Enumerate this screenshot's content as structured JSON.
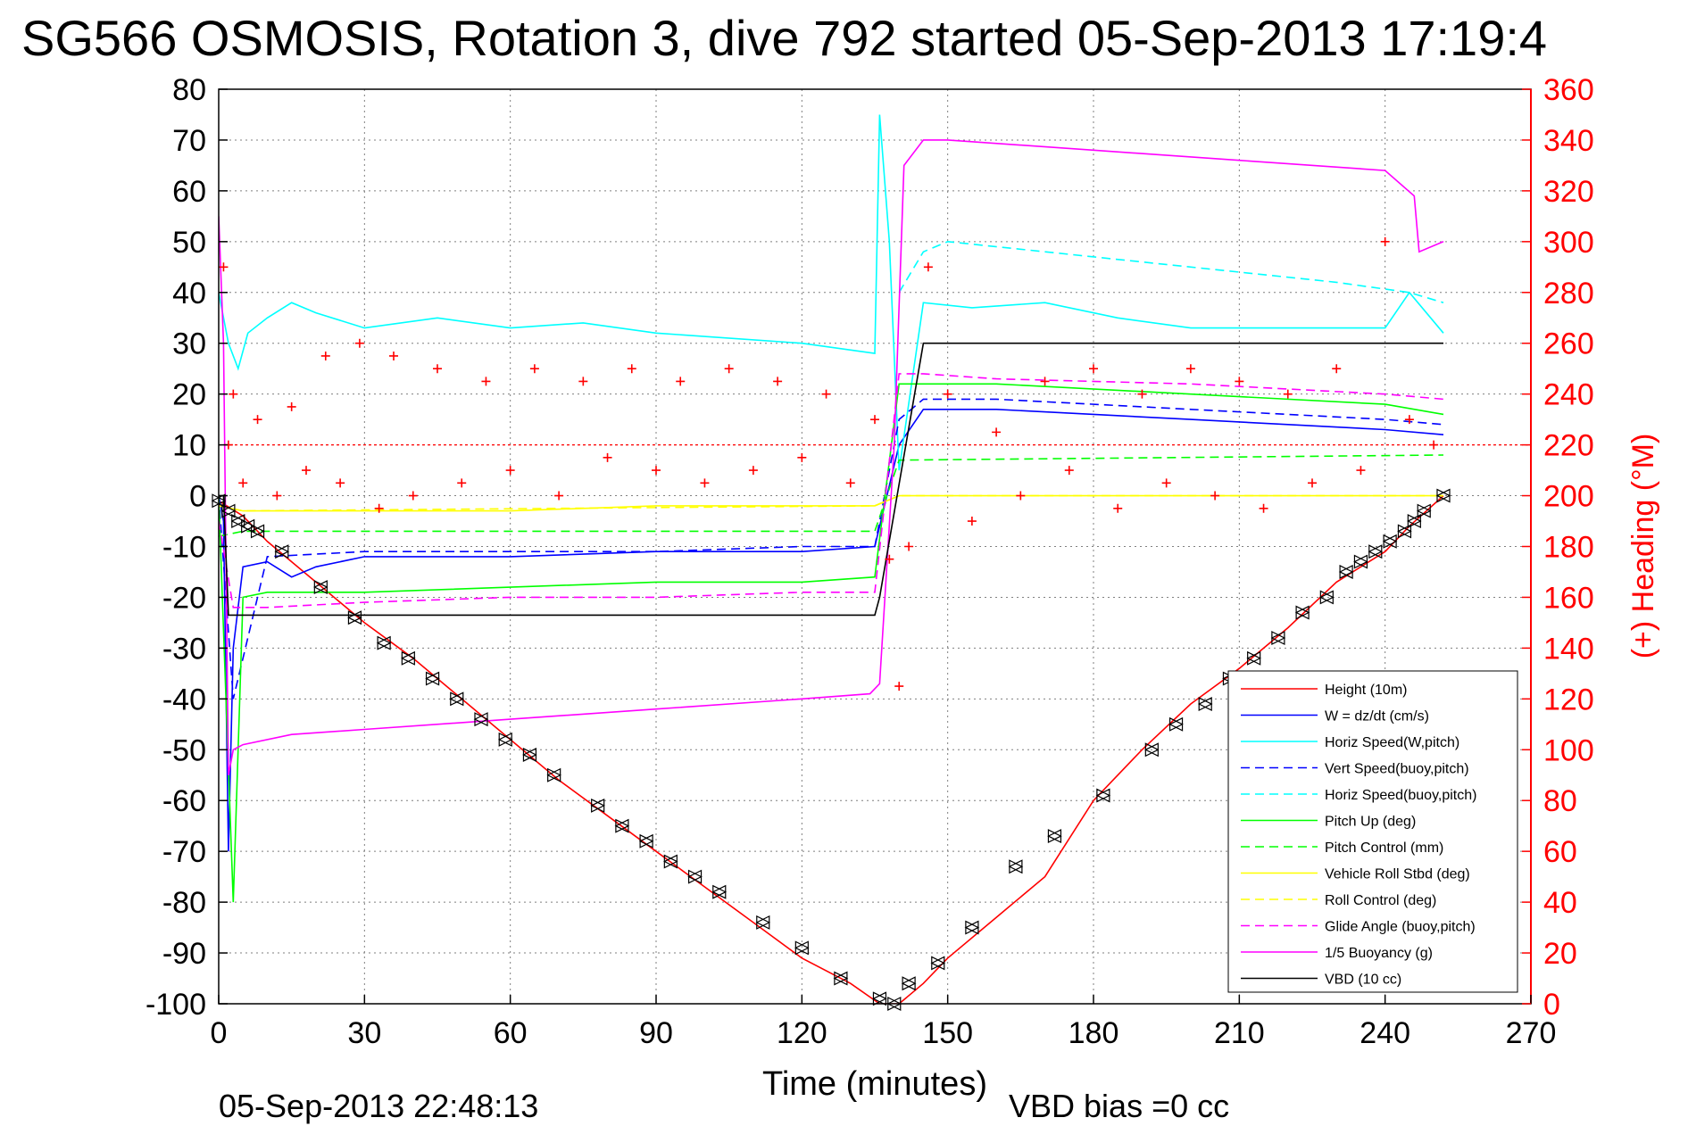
{
  "title": "SG566 OSMOSIS, Rotation 3, dive 792 started 05-Sep-2013 17:19:4",
  "footer_left": "05-Sep-2013 22:48:13",
  "footer_right": "VBD bias =0 cc",
  "colors": {
    "right_axis": "#ff0000",
    "grid": "#7f7f7f"
  },
  "chart_data": {
    "type": "line",
    "xlabel": "Time (minutes)",
    "ylabel": "",
    "y2label": "(+) Heading (°M)",
    "xlim": [
      0,
      270
    ],
    "ylim": [
      -100,
      80
    ],
    "y2lim": [
      0,
      360
    ],
    "xticks": [
      0,
      30,
      60,
      90,
      120,
      150,
      180,
      210,
      240,
      270
    ],
    "yticks": [
      -100,
      -90,
      -80,
      -70,
      -60,
      -50,
      -40,
      -30,
      -20,
      -10,
      0,
      10,
      20,
      30,
      40,
      50,
      60,
      70,
      80
    ],
    "y2ticks": [
      0,
      20,
      40,
      60,
      80,
      100,
      120,
      140,
      160,
      180,
      200,
      220,
      240,
      260,
      280,
      300,
      320,
      340,
      360
    ],
    "grid": true,
    "legend_position": "bottom-right",
    "series": [
      {
        "name": "Height (10m)",
        "color": "#ff0000",
        "style": "solid",
        "x": [
          0,
          5,
          10,
          20,
          30,
          40,
          50,
          60,
          70,
          80,
          90,
          100,
          110,
          120,
          130,
          136,
          140,
          145,
          150,
          160,
          170,
          180,
          190,
          200,
          210,
          220,
          230,
          240,
          245,
          252
        ],
        "y": [
          -1,
          -4,
          -9,
          -17,
          -25,
          -32,
          -40,
          -48,
          -56,
          -63,
          -70,
          -77,
          -84,
          -91,
          -96,
          -100,
          -100,
          -96,
          -91,
          -83,
          -75,
          -60,
          -50,
          -41,
          -34,
          -26,
          -17,
          -11,
          -6,
          0
        ]
      },
      {
        "name": "W = dz/dt (cm/s)",
        "color": "#0000ff",
        "style": "solid",
        "x": [
          0,
          1,
          2,
          3,
          5,
          10,
          15,
          20,
          30,
          60,
          90,
          120,
          135,
          140,
          145,
          160,
          200,
          240,
          252
        ],
        "y": [
          0,
          -5,
          -70,
          -30,
          -14,
          -13,
          -16,
          -14,
          -12,
          -12,
          -11,
          -11,
          -10,
          10,
          17,
          17,
          15,
          13,
          12
        ]
      },
      {
        "name": "Horiz Speed(W,pitch)",
        "color": "#00ffff",
        "style": "solid",
        "x": [
          0,
          2,
          4,
          6,
          10,
          15,
          20,
          30,
          45,
          60,
          75,
          90,
          120,
          135,
          136,
          138,
          140,
          145,
          155,
          170,
          185,
          200,
          220,
          240,
          245,
          252
        ],
        "y": [
          40,
          30,
          25,
          32,
          35,
          38,
          36,
          33,
          35,
          33,
          34,
          32,
          30,
          28,
          75,
          50,
          5,
          38,
          37,
          38,
          35,
          33,
          33,
          33,
          40,
          32
        ]
      },
      {
        "name": "Vert Speed(buoy,pitch)",
        "color": "#0000ff",
        "style": "dashed",
        "x": [
          0,
          3,
          10,
          30,
          60,
          90,
          120,
          135,
          140,
          145,
          160,
          200,
          240,
          252
        ],
        "y": [
          0,
          -40,
          -12,
          -11,
          -11,
          -11,
          -10,
          -10,
          15,
          19,
          19,
          17,
          15,
          14
        ]
      },
      {
        "name": "Horiz Speed(buoy,pitch)",
        "color": "#00ffff",
        "style": "dashed",
        "x": [
          140,
          145,
          150,
          170,
          190,
          210,
          230,
          245,
          252
        ],
        "y": [
          40,
          48,
          50,
          48,
          46,
          44,
          42,
          40,
          38
        ]
      },
      {
        "name": "Pitch Up (deg)",
        "color": "#00ff00",
        "style": "solid",
        "x": [
          0,
          3,
          5,
          10,
          30,
          60,
          90,
          120,
          135,
          140,
          145,
          160,
          200,
          240,
          252
        ],
        "y": [
          0,
          -80,
          -20,
          -19,
          -19,
          -18,
          -17,
          -17,
          -16,
          22,
          22,
          22,
          20,
          18,
          16
        ]
      },
      {
        "name": "Pitch Control (mm)",
        "color": "#00ff00",
        "style": "dashed",
        "x": [
          0,
          5,
          135,
          140,
          252
        ],
        "y": [
          -8,
          -7,
          -7,
          7,
          8
        ]
      },
      {
        "name": "Vehicle Roll Stbd (deg)",
        "color": "#ffff00",
        "style": "solid",
        "x": [
          0,
          5,
          30,
          60,
          90,
          120,
          135,
          140,
          160,
          200,
          240,
          252
        ],
        "y": [
          -2,
          -3,
          -3,
          -3,
          -2,
          -2,
          -2,
          0,
          0,
          0,
          0,
          0
        ]
      },
      {
        "name": "Roll Control (deg)",
        "color": "#ffff00",
        "style": "dashed",
        "x": [
          0,
          5,
          135,
          140,
          252
        ],
        "y": [
          -2,
          -3,
          -2,
          0,
          0
        ]
      },
      {
        "name": "Glide Angle (buoy,pitch)",
        "color": "#ff00ff",
        "style": "dashed",
        "x": [
          0,
          3,
          10,
          30,
          60,
          90,
          120,
          135,
          140,
          145,
          160,
          200,
          240,
          252
        ],
        "y": [
          -5,
          -22,
          -22,
          -21,
          -20,
          -20,
          -19,
          -19,
          24,
          24,
          23,
          22,
          20,
          19
        ]
      },
      {
        "name": "1/5 Buoyancy (g)",
        "color": "#ff00ff",
        "style": "solid",
        "x": [
          0,
          1,
          2,
          3,
          5,
          15,
          30,
          60,
          90,
          120,
          134,
          136,
          139,
          141,
          145,
          150,
          180,
          210,
          240,
          246,
          247,
          252
        ],
        "y": [
          55,
          30,
          -55,
          -50,
          -49,
          -47,
          -46,
          -44,
          -42,
          -40,
          -39,
          -37,
          10,
          65,
          70,
          70,
          68,
          66,
          64,
          59,
          48,
          50
        ]
      },
      {
        "name": "VBD (10 cc)",
        "color": "#000000",
        "style": "solid",
        "x": [
          0,
          1,
          2,
          135,
          136,
          145,
          146,
          252
        ],
        "y": [
          0,
          0,
          -23.5,
          -23.5,
          -20,
          30,
          30,
          30
        ]
      }
    ],
    "heading": {
      "name": "(+) Heading (°M)",
      "color": "#ff0000",
      "marker": "+",
      "x": [
        1,
        2,
        3,
        5,
        8,
        12,
        15,
        18,
        22,
        25,
        29,
        33,
        36,
        40,
        45,
        50,
        55,
        60,
        65,
        70,
        75,
        80,
        85,
        90,
        95,
        100,
        105,
        110,
        115,
        120,
        125,
        130,
        135,
        138,
        140,
        142,
        146,
        150,
        155,
        160,
        165,
        170,
        175,
        180,
        185,
        190,
        195,
        200,
        205,
        210,
        215,
        220,
        225,
        230,
        235,
        240,
        245,
        250
      ],
      "y": [
        290,
        220,
        240,
        205,
        230,
        200,
        235,
        210,
        255,
        205,
        260,
        195,
        255,
        200,
        250,
        205,
        245,
        210,
        250,
        200,
        245,
        215,
        250,
        210,
        245,
        205,
        250,
        210,
        245,
        215,
        240,
        205,
        230,
        175,
        125,
        180,
        290,
        240,
        190,
        225,
        200,
        245,
        210,
        250,
        195,
        240,
        205,
        250,
        200,
        245,
        195,
        240,
        205,
        250,
        210,
        300,
        230,
        220
      ]
    },
    "dive_markers": {
      "name": "",
      "color": "#000000",
      "marker": "triangles",
      "x": [
        0,
        2,
        4,
        6,
        8,
        13,
        21,
        28,
        34,
        39,
        44,
        49,
        54,
        59,
        64,
        69,
        78,
        83,
        88,
        93,
        98,
        103,
        112,
        120,
        128,
        136,
        139,
        142,
        148,
        155,
        164,
        172,
        182,
        192,
        197,
        203,
        208,
        213,
        218,
        223,
        228,
        232,
        235,
        238,
        241,
        244,
        246,
        248,
        252
      ],
      "y": [
        -1,
        -3,
        -5,
        -6,
        -7,
        -11,
        -18,
        -24,
        -29,
        -32,
        -36,
        -40,
        -44,
        -48,
        -51,
        -55,
        -61,
        -65,
        -68,
        -72,
        -75,
        -78,
        -84,
        -89,
        -95,
        -99,
        -100,
        -96,
        -92,
        -85,
        -73,
        -67,
        -59,
        -50,
        -45,
        -41,
        -36,
        -32,
        -28,
        -23,
        -20,
        -15,
        -13,
        -11,
        -9,
        -7,
        -5,
        -3,
        0
      ]
    },
    "reference_lines": [
      {
        "y2": 220,
        "color": "#ff0000",
        "style": "dotted"
      }
    ]
  }
}
